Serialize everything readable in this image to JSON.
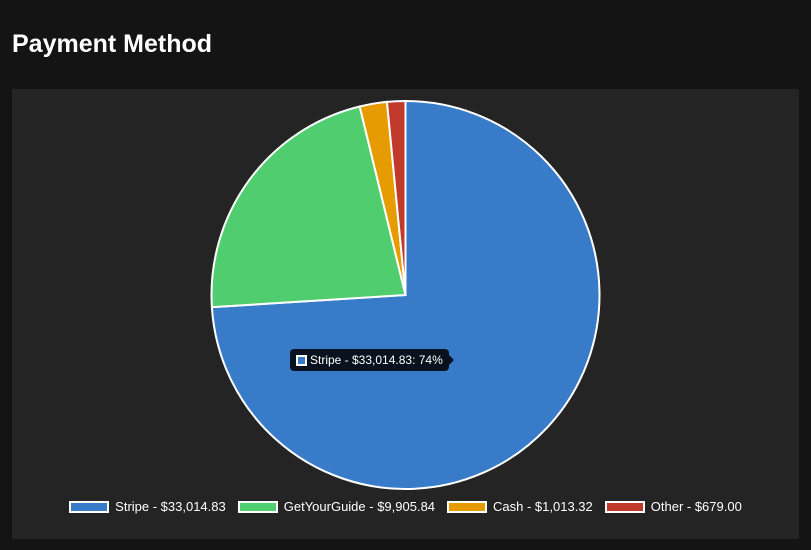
{
  "page": {
    "title": "Payment Method"
  },
  "chart_data": {
    "type": "pie",
    "title": "",
    "categories": [
      "Stripe",
      "GetYourGuide",
      "Cash",
      "Other"
    ],
    "values": [
      33014.83,
      9905.84,
      1013.32,
      679.0
    ],
    "colors": [
      "#377bc9",
      "#50cd6e",
      "#e69b00",
      "#c0392b"
    ],
    "border_color": "#ffffff",
    "legend": {
      "position": "bottom",
      "items": [
        {
          "label": "Stripe - $33,014.83",
          "color": "#377bc9"
        },
        {
          "label": "GetYourGuide - $9,905.84",
          "color": "#50cd6e"
        },
        {
          "label": "Cash - $1,013.32",
          "color": "#e69b00"
        },
        {
          "label": "Other - $679.00",
          "color": "#c0392b"
        }
      ]
    },
    "tooltip": {
      "text": "Stripe - $33,014.83: 74%",
      "color": "#377bc9"
    }
  }
}
